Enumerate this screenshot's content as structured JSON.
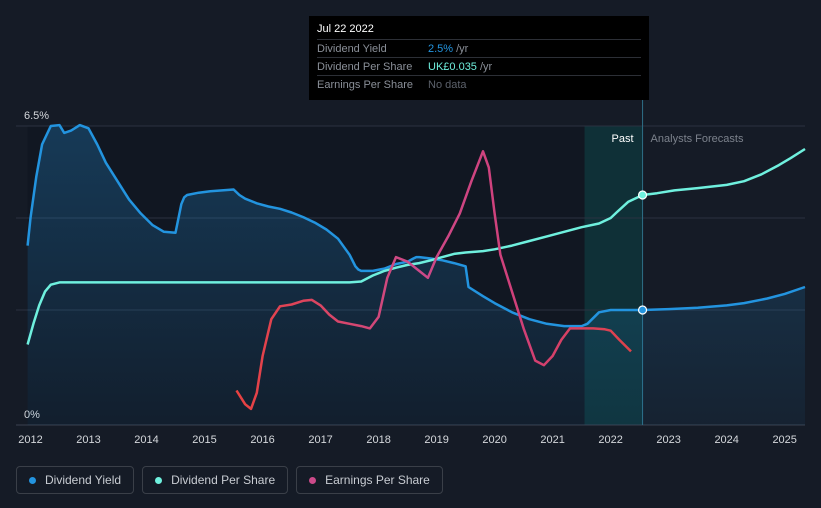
{
  "tooltip": {
    "date": "Jul 22 2022",
    "rows": [
      {
        "label": "Dividend Yield",
        "value": "2.5%",
        "unit": "/yr"
      },
      {
        "label": "Dividend Per Share",
        "value": "UK£0.035",
        "unit": "/yr"
      },
      {
        "label": "Earnings Per Share",
        "value": "No data"
      }
    ]
  },
  "legend": [
    {
      "label": "Dividend Yield",
      "color": "#2394df"
    },
    {
      "label": "Dividend Per Share",
      "color": "#6ff0de"
    },
    {
      "label": "Earnings Per Share",
      "color": "#cc4a8a"
    }
  ],
  "chart_data": {
    "type": "line",
    "y_top_label": "6.5%",
    "y_bottom_label": "0%",
    "ylim": [
      0,
      6.5
    ],
    "xlim": [
      2011.75,
      2025.35
    ],
    "x_ticks": [
      "2012",
      "2013",
      "2014",
      "2015",
      "2016",
      "2017",
      "2018",
      "2019",
      "2020",
      "2021",
      "2022",
      "2023",
      "2024",
      "2025"
    ],
    "past_label": "Past",
    "forecast_label": "Analysts Forecasts",
    "forecast_start": 2022.55,
    "highlight_band": [
      2021.55,
      2022.55
    ],
    "series": [
      {
        "name": "Dividend Yield",
        "color": "#2394df",
        "x": [
          2011.95,
          2012.0,
          2012.1,
          2012.2,
          2012.35,
          2012.5,
          2012.58,
          2012.7,
          2012.85,
          2013.0,
          2013.15,
          2013.3,
          2013.5,
          2013.7,
          2013.9,
          2014.1,
          2014.3,
          2014.5,
          2014.6,
          2014.65,
          2014.7,
          2014.9,
          2015.1,
          2015.3,
          2015.5,
          2015.6,
          2015.7,
          2015.9,
          2016.1,
          2016.3,
          2016.5,
          2016.7,
          2016.9,
          2017.1,
          2017.3,
          2017.5,
          2017.6,
          2017.65,
          2017.7,
          2017.9,
          2018.1,
          2018.3,
          2018.5,
          2018.6,
          2018.65,
          2018.7,
          2018.9,
          2019.1,
          2019.3,
          2019.5,
          2019.55,
          2019.8,
          2020.0,
          2020.3,
          2020.6,
          2020.9,
          2021.2,
          2021.5,
          2021.6,
          2021.8,
          2022.0,
          2022.2,
          2022.4,
          2022.55,
          2023.0,
          2023.5,
          2024.0,
          2024.3,
          2024.7,
          2025.0,
          2025.35
        ],
        "y": [
          3.9,
          4.5,
          5.4,
          6.1,
          6.5,
          6.52,
          6.35,
          6.4,
          6.52,
          6.45,
          6.1,
          5.7,
          5.3,
          4.9,
          4.6,
          4.35,
          4.2,
          4.18,
          4.8,
          4.95,
          5.0,
          5.05,
          5.08,
          5.1,
          5.12,
          5.0,
          4.92,
          4.82,
          4.75,
          4.7,
          4.62,
          4.52,
          4.4,
          4.25,
          4.05,
          3.7,
          3.45,
          3.38,
          3.35,
          3.35,
          3.4,
          3.5,
          3.55,
          3.62,
          3.65,
          3.65,
          3.62,
          3.58,
          3.52,
          3.45,
          3.0,
          2.8,
          2.65,
          2.45,
          2.3,
          2.2,
          2.15,
          2.15,
          2.2,
          2.45,
          2.5,
          2.5,
          2.5,
          2.5,
          2.52,
          2.55,
          2.6,
          2.65,
          2.75,
          2.85,
          3.0
        ]
      },
      {
        "name": "Dividend Per Share",
        "color": "#6ff0de",
        "x": [
          2011.95,
          2012.05,
          2012.15,
          2012.25,
          2012.35,
          2012.5,
          2013.0,
          2014.0,
          2015.0,
          2016.0,
          2017.0,
          2017.5,
          2017.7,
          2017.9,
          2018.1,
          2018.3,
          2018.5,
          2018.7,
          2018.9,
          2019.1,
          2019.3,
          2019.5,
          2019.8,
          2020.0,
          2020.3,
          2020.6,
          2020.9,
          2021.2,
          2021.5,
          2021.8,
          2022.0,
          2022.1,
          2022.3,
          2022.55,
          2022.8,
          2023.1,
          2023.5,
          2024.0,
          2024.3,
          2024.6,
          2024.9,
          2025.1,
          2025.35
        ],
        "y": [
          1.75,
          2.2,
          2.6,
          2.9,
          3.05,
          3.1,
          3.1,
          3.1,
          3.1,
          3.1,
          3.1,
          3.1,
          3.12,
          3.25,
          3.35,
          3.42,
          3.48,
          3.52,
          3.58,
          3.65,
          3.72,
          3.75,
          3.78,
          3.82,
          3.9,
          4.0,
          4.1,
          4.2,
          4.3,
          4.38,
          4.5,
          4.62,
          4.85,
          5.0,
          5.04,
          5.1,
          5.15,
          5.22,
          5.3,
          5.45,
          5.65,
          5.8,
          6.0
        ]
      },
      {
        "name": "Earnings Per Share",
        "color": "#cc4a8a",
        "x": [
          2015.55,
          2015.7,
          2015.8,
          2015.9,
          2016.0,
          2016.15,
          2016.3,
          2016.5,
          2016.7,
          2016.85,
          2017.0,
          2017.15,
          2017.3,
          2017.5,
          2017.7,
          2017.85,
          2018.0,
          2018.15,
          2018.3,
          2018.5,
          2018.7,
          2018.85,
          2019.0,
          2019.2,
          2019.4,
          2019.6,
          2019.8,
          2019.9,
          2020.0,
          2020.1,
          2020.3,
          2020.5,
          2020.7,
          2020.85,
          2021.0,
          2021.15,
          2021.3,
          2021.5,
          2021.7,
          2021.9,
          2022.0,
          2022.15,
          2022.35
        ],
        "y": [
          0.75,
          0.45,
          0.35,
          0.7,
          1.5,
          2.3,
          2.58,
          2.62,
          2.7,
          2.72,
          2.6,
          2.4,
          2.25,
          2.2,
          2.15,
          2.1,
          2.35,
          3.2,
          3.65,
          3.55,
          3.35,
          3.2,
          3.65,
          4.1,
          4.6,
          5.3,
          5.95,
          5.6,
          4.6,
          3.7,
          2.9,
          2.1,
          1.4,
          1.3,
          1.5,
          1.85,
          2.1,
          2.1,
          2.1,
          2.08,
          2.05,
          1.85,
          1.6
        ]
      }
    ],
    "markers": [
      {
        "series": "Dividend Per Share",
        "x": 2022.55,
        "y": 5.0
      },
      {
        "series": "Dividend Yield",
        "x": 2022.55,
        "y": 2.5
      }
    ]
  }
}
